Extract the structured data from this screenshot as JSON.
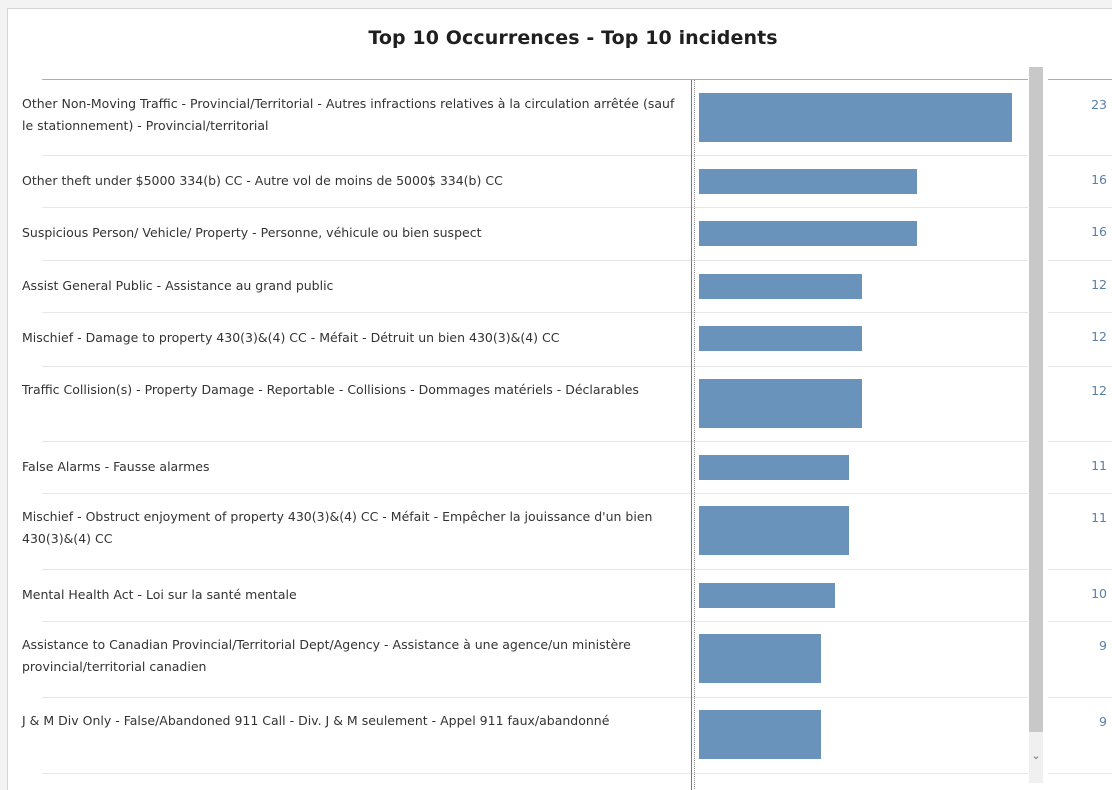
{
  "chart_data": {
    "type": "bar",
    "orientation": "horizontal",
    "title": "Top 10 Occurrences - Top 10 incidents",
    "xlabel": "",
    "ylabel": "",
    "categories": [
      "Other Non-Moving Traffic - Provincial/Territorial - Autres infractions relatives à la circulation arrêtée (sauf le stationnement) - Provincial/territorial",
      "Other theft under $5000 334(b) CC - Autre vol de moins de 5000$ 334(b) CC",
      "Suspicious Person/ Vehicle/ Property - Personne, véhicule ou bien suspect",
      "Assist General Public - Assistance au grand public",
      "Mischief - Damage to property 430(3)&(4) CC - Méfait - Détruit un bien 430(3)&(4) CC",
      "Traffic Collision(s) - Property Damage - Reportable - Collisions - Dommages matériels - Déclarables",
      "False Alarms - Fausse alarmes",
      "Mischief - Obstruct enjoyment of property 430(3)&(4) CC - Méfait - Empêcher la jouissance d'un bien 430(3)&(4) CC",
      "Mental Health Act - Loi sur la santé mentale",
      "Assistance to Canadian Provincial/Territorial Dept/Agency - Assistance à une agence/un ministère provincial/territorial canadien",
      "J & M Div Only - False/Abandoned 911 Call - Div. J & M seulement - Appel 911 faux/abandonné"
    ],
    "values": [
      23,
      16,
      16,
      12,
      12,
      12,
      11,
      11,
      10,
      9,
      9
    ],
    "xlim": [
      0,
      23
    ],
    "bar_color": "#6a93bc",
    "value_color": "#5a7fa6",
    "grid": false,
    "legend": "none"
  }
}
